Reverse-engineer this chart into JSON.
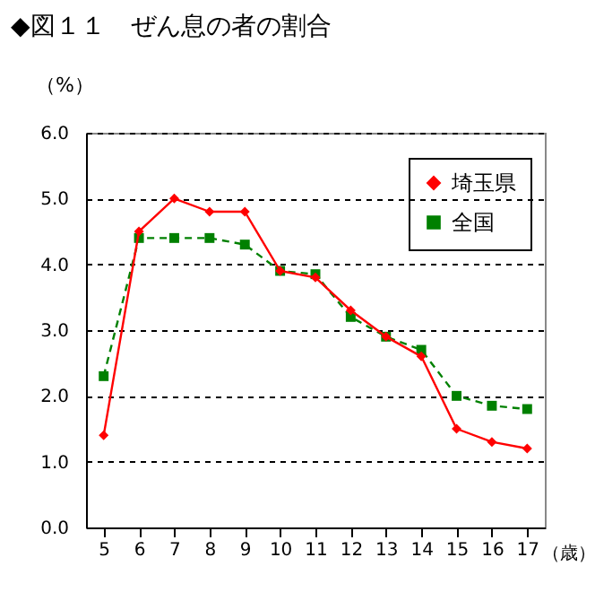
{
  "chart_data": {
    "type": "line",
    "title": "◆図１１　ぜん息の者の割合",
    "ylabel": "（%）",
    "xlabel": "（歳）",
    "categories": [
      "5",
      "6",
      "7",
      "8",
      "9",
      "10",
      "11",
      "12",
      "13",
      "14",
      "15",
      "16",
      "17"
    ],
    "series": [
      {
        "name": "埼玉県",
        "color": "#ff0000",
        "marker": "diamond",
        "line_style": "solid",
        "values": [
          1.4,
          4.5,
          5.0,
          4.8,
          4.8,
          3.9,
          3.8,
          3.3,
          2.9,
          2.6,
          1.5,
          1.3,
          1.2
        ]
      },
      {
        "name": "全国",
        "color": "#008000",
        "marker": "square",
        "line_style": "dashed",
        "values": [
          2.3,
          4.4,
          4.4,
          4.4,
          4.3,
          3.9,
          3.85,
          3.2,
          2.9,
          2.7,
          2.0,
          1.85,
          1.8
        ]
      }
    ],
    "ylim": [
      0,
      6
    ],
    "yticks": [
      {
        "value": 0,
        "label": "0.0"
      },
      {
        "value": 1,
        "label": "1.0"
      },
      {
        "value": 2,
        "label": "2.0"
      },
      {
        "value": 3,
        "label": "3.0"
      },
      {
        "value": 4,
        "label": "4.0"
      },
      {
        "value": 5,
        "label": "5.0"
      },
      {
        "value": 6,
        "label": "6.0"
      }
    ],
    "grid": "y",
    "legend": "top right"
  }
}
